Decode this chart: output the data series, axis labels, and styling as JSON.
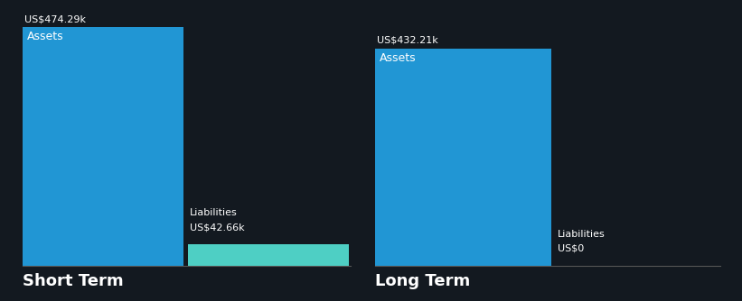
{
  "background_color": "#131920",
  "groups": [
    {
      "label": "Short Term",
      "assets_value": 474.29,
      "liabilities_value": 42.66,
      "assets_label": "Assets",
      "assets_value_label": "US$474.29k",
      "liabilities_label": "Liabilities",
      "liabilities_value_label": "US$42.66k",
      "assets_color": "#2196d4",
      "liabilities_color": "#4ecfc4"
    },
    {
      "label": "Long Term",
      "assets_value": 432.21,
      "liabilities_value": 0,
      "assets_label": "Assets",
      "assets_value_label": "US$432.21k",
      "liabilities_label": "Liabilities",
      "liabilities_value_label": "US$0",
      "assets_color": "#2196d4",
      "liabilities_color": "#2196d4"
    }
  ],
  "text_color": "#ffffff",
  "inside_label_fontsize": 9,
  "group_label_fontsize": 13,
  "value_fontsize": 8,
  "max_value": 474.29
}
